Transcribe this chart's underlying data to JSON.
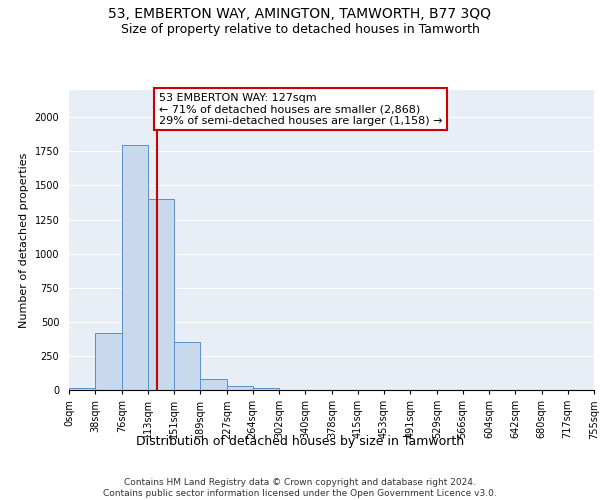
{
  "title1": "53, EMBERTON WAY, AMINGTON, TAMWORTH, B77 3QQ",
  "title2": "Size of property relative to detached houses in Tamworth",
  "xlabel": "Distribution of detached houses by size in Tamworth",
  "ylabel": "Number of detached properties",
  "bin_edges": [
    0,
    38,
    76,
    113,
    151,
    189,
    227,
    264,
    302,
    340,
    378,
    415,
    453,
    491,
    529,
    566,
    604,
    642,
    680,
    717,
    755
  ],
  "bin_labels": [
    "0sqm",
    "38sqm",
    "76sqm",
    "113sqm",
    "151sqm",
    "189sqm",
    "227sqm",
    "264sqm",
    "302sqm",
    "340sqm",
    "378sqm",
    "415sqm",
    "453sqm",
    "491sqm",
    "529sqm",
    "566sqm",
    "604sqm",
    "642sqm",
    "680sqm",
    "717sqm",
    "755sqm"
  ],
  "bar_heights": [
    15,
    420,
    1800,
    1400,
    350,
    80,
    30,
    15,
    0,
    0,
    0,
    0,
    0,
    0,
    0,
    0,
    0,
    0,
    0,
    0
  ],
  "bar_color": "#c9d9ed",
  "bar_edge_color": "#5b8fc9",
  "property_line_x": 127,
  "annotation_text": "53 EMBERTON WAY: 127sqm\n← 71% of detached houses are smaller (2,868)\n29% of semi-detached houses are larger (1,158) →",
  "annotation_box_color": "#ffffff",
  "annotation_box_edge_color": "#cc0000",
  "line_color": "#cc0000",
  "ylim": [
    0,
    2200
  ],
  "background_color": "#e8eef5",
  "footer_text": "Contains HM Land Registry data © Crown copyright and database right 2024.\nContains public sector information licensed under the Open Government Licence v3.0.",
  "title1_fontsize": 10,
  "title2_fontsize": 9,
  "xlabel_fontsize": 9,
  "ylabel_fontsize": 8,
  "tick_fontsize": 7,
  "annotation_fontsize": 8,
  "footer_fontsize": 6.5
}
